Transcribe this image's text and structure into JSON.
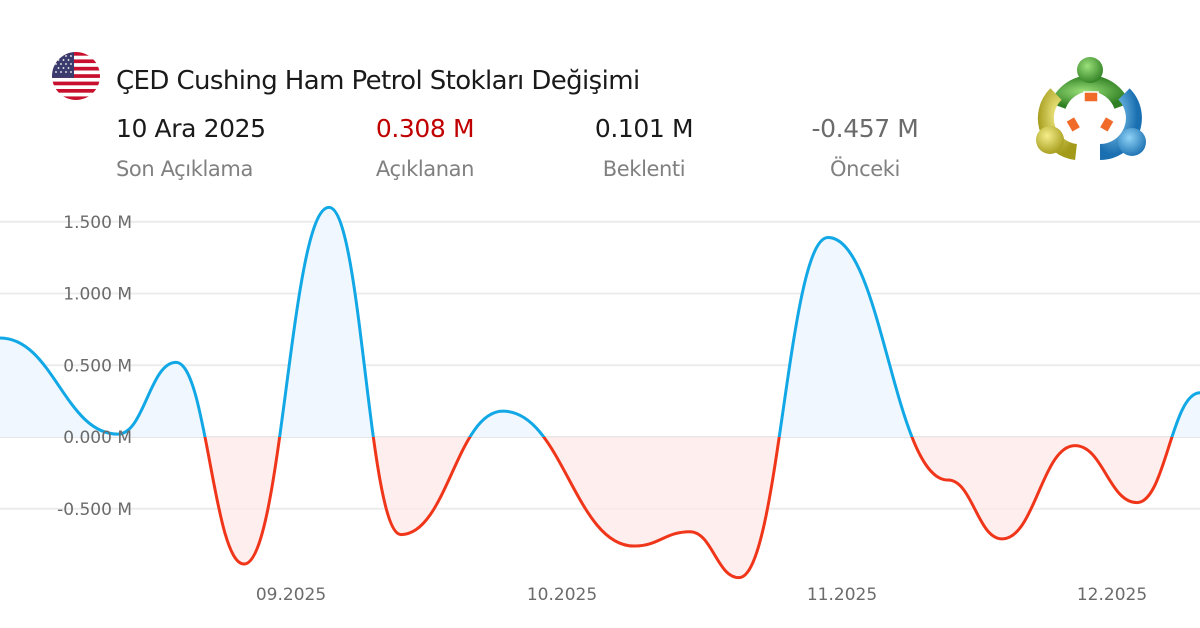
{
  "header": {
    "flag_icon": "us-flag-icon",
    "title": "ÇED Cushing Ham Petrol Stokları Değişimi",
    "logo_icon": "metatrader-logo-icon"
  },
  "stats": [
    {
      "value": "10 Ara 2025",
      "label": "Son Açıklama",
      "color": "#1a1a1a"
    },
    {
      "value": "0.308 M",
      "label": "Açıklanan",
      "color": "#c00000"
    },
    {
      "value": "0.101 M",
      "label": "Beklenti",
      "color": "#1a1a1a"
    },
    {
      "value": "-0.457 M",
      "label": "Önceki",
      "color": "#6b6b6b"
    }
  ],
  "colors": {
    "positive_line": "#12a8e6",
    "negative_line": "#f0361a",
    "positive_fill": "#d6eafb",
    "negative_fill": "#fde8e8",
    "grid": "#ececec"
  },
  "chart_data": {
    "type": "area",
    "title": "ÇED Cushing Ham Petrol Stokları Değişimi",
    "xlabel": "",
    "ylabel": "",
    "unit": "M",
    "ylim": [
      -1.1,
      1.65
    ],
    "yticks": [
      -0.5,
      0.0,
      0.5,
      1.0,
      1.5
    ],
    "ytick_labels": [
      "-0.500 M",
      "0.000 M",
      "0.500 M",
      "1.000 M",
      "1.500 M"
    ],
    "xtick_labels": [
      "09.2025",
      "10.2025",
      "11.2025",
      "12.2025"
    ],
    "xtick_positions": [
      291,
      562,
      842,
      1112
    ],
    "grid": true,
    "legend": null,
    "points": [
      {
        "x": 0,
        "y": 0.69
      },
      {
        "x": 118,
        "y": 0.02
      },
      {
        "x": 176,
        "y": 0.52
      },
      {
        "x": 244,
        "y": -0.885
      },
      {
        "x": 329,
        "y": 1.6
      },
      {
        "x": 401,
        "y": -0.68
      },
      {
        "x": 503,
        "y": 0.18
      },
      {
        "x": 634,
        "y": -0.76
      },
      {
        "x": 690,
        "y": -0.66
      },
      {
        "x": 739,
        "y": -0.98
      },
      {
        "x": 828,
        "y": 1.39
      },
      {
        "x": 948,
        "y": -0.3
      },
      {
        "x": 1002,
        "y": -0.71
      },
      {
        "x": 1075,
        "y": -0.06
      },
      {
        "x": 1137,
        "y": -0.457
      },
      {
        "x": 1200,
        "y": 0.308
      }
    ]
  }
}
